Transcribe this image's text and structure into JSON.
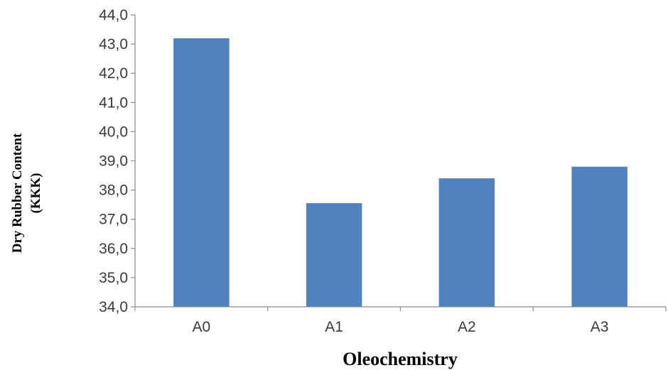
{
  "chart_data": {
    "type": "bar",
    "categories": [
      "A0",
      "A1",
      "A2",
      "A3"
    ],
    "values": [
      43.2,
      37.55,
      38.4,
      38.8
    ],
    "title": "",
    "xlabel": "Oleochemistry",
    "ylabel_line1": "Dry Rubber Content",
    "ylabel_line2": "(KKK)",
    "ylim": [
      34.0,
      44.0
    ],
    "yticks": [
      "34,0",
      "35,0",
      "36,0",
      "37,0",
      "38,0",
      "39,0",
      "40,0",
      "41,0",
      "42,0",
      "43,0",
      "44,0"
    ],
    "grid": false,
    "legend": "none",
    "bar_color": "#4f81bd"
  }
}
